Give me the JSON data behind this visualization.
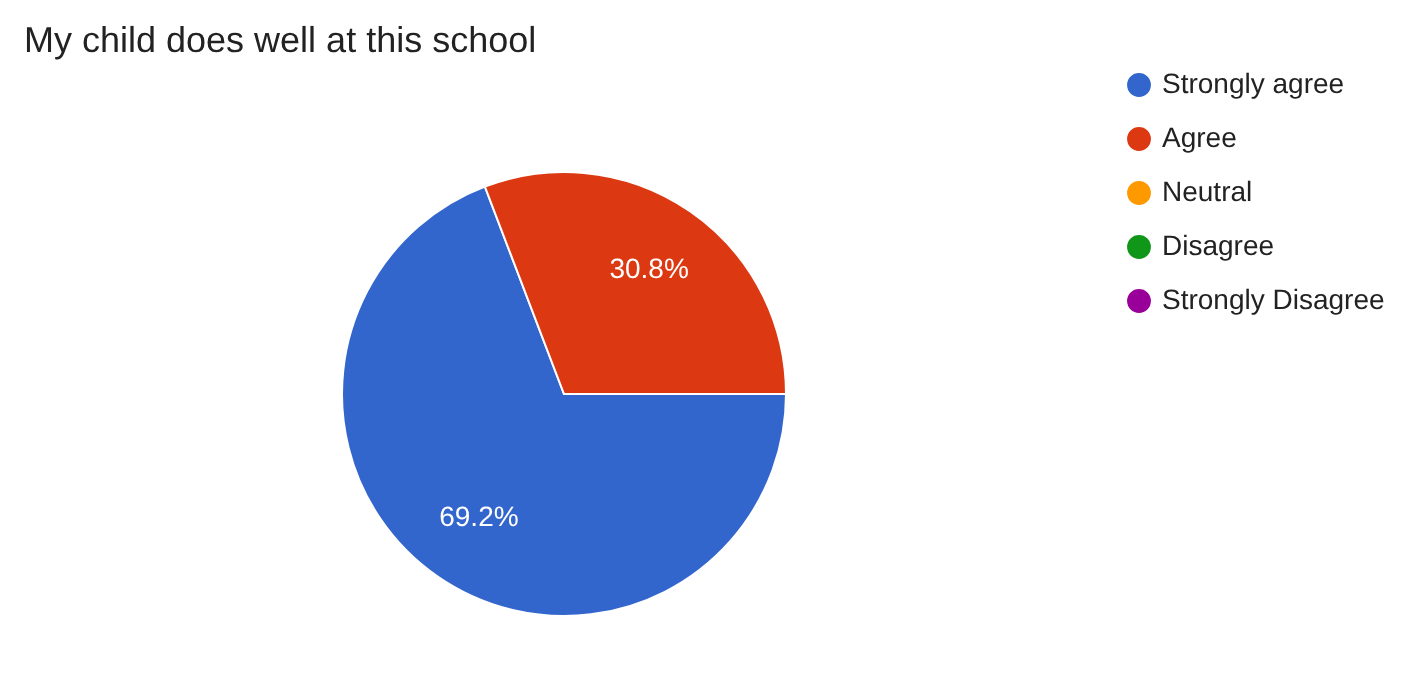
{
  "chart_data": {
    "type": "pie",
    "title": "My child does well at this school",
    "categories": [
      "Strongly agree",
      "Agree",
      "Neutral",
      "Disagree",
      "Strongly Disagree"
    ],
    "values": [
      69.2,
      30.8,
      0,
      0,
      0
    ],
    "colors": [
      "#3366cc",
      "#dc3912",
      "#ff9900",
      "#109618",
      "#990099"
    ],
    "value_labels": [
      "69.2%",
      "30.8%",
      null,
      null,
      null
    ],
    "legend": "right"
  }
}
